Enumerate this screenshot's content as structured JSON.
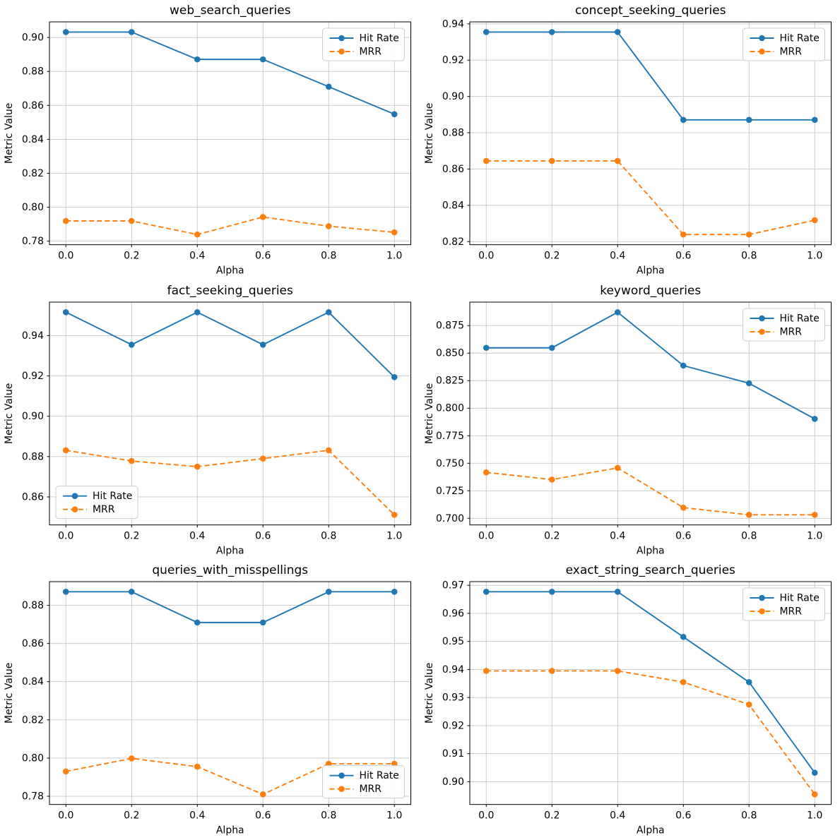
{
  "figure": {
    "ylabel": "Metric Value",
    "xlabel": "Alpha",
    "series_names": [
      "Hit Rate",
      "MRR"
    ],
    "colors": {
      "hit_rate": "#1f77b4",
      "mrr": "#ff7f0e",
      "grid": "#c6c6c6",
      "spine": "#000000",
      "text": "#000000",
      "legend_edge": "#cccccc"
    }
  },
  "chart_data": [
    {
      "type": "line",
      "title": "web_search_queries",
      "xlabel": "Alpha",
      "ylabel": "Metric Value",
      "x": [
        0.0,
        0.2,
        0.4,
        0.6,
        0.8,
        1.0
      ],
      "xlim": [
        -0.05,
        1.05
      ],
      "ylim": [
        0.7779,
        0.9092
      ],
      "xticks": [
        0.0,
        0.2,
        0.4,
        0.6,
        0.8,
        1.0
      ],
      "yticks": [
        0.78,
        0.8,
        0.82,
        0.84,
        0.86,
        0.88,
        0.9
      ],
      "ydecimals": 2,
      "grid": true,
      "legend_position": "upper-right",
      "series": [
        {
          "name": "Hit Rate",
          "color": "#1f77b4",
          "style": "solid",
          "marker": "circle",
          "values": [
            0.9032,
            0.9032,
            0.8871,
            0.8871,
            0.871,
            0.8548
          ]
        },
        {
          "name": "MRR",
          "color": "#ff7f0e",
          "style": "dashed",
          "marker": "circle",
          "values": [
            0.7919,
            0.7919,
            0.7839,
            0.7942,
            0.7888,
            0.7852
          ]
        }
      ]
    },
    {
      "type": "line",
      "title": "concept_seeking_queries",
      "xlabel": "Alpha",
      "ylabel": "Metric Value",
      "x": [
        0.0,
        0.2,
        0.4,
        0.6,
        0.8,
        1.0
      ],
      "xlim": [
        -0.05,
        1.05
      ],
      "ylim": [
        0.8183,
        0.9411
      ],
      "xticks": [
        0.0,
        0.2,
        0.4,
        0.6,
        0.8,
        1.0
      ],
      "yticks": [
        0.82,
        0.84,
        0.86,
        0.88,
        0.9,
        0.92,
        0.94
      ],
      "ydecimals": 2,
      "grid": true,
      "legend_position": "upper-right",
      "series": [
        {
          "name": "Hit Rate",
          "color": "#1f77b4",
          "style": "solid",
          "marker": "circle",
          "values": [
            0.9355,
            0.9355,
            0.9355,
            0.8871,
            0.8871,
            0.8871
          ]
        },
        {
          "name": "MRR",
          "color": "#ff7f0e",
          "style": "dashed",
          "marker": "circle",
          "values": [
            0.8645,
            0.8645,
            0.8645,
            0.8239,
            0.8239,
            0.8318
          ]
        }
      ]
    },
    {
      "type": "line",
      "title": "fact_seeking_queries",
      "xlabel": "Alpha",
      "ylabel": "Metric Value",
      "x": [
        0.0,
        0.2,
        0.4,
        0.6,
        0.8,
        1.0
      ],
      "xlim": [
        -0.05,
        1.05
      ],
      "ylim": [
        0.8461,
        0.9566
      ],
      "xticks": [
        0.0,
        0.2,
        0.4,
        0.6,
        0.8,
        1.0
      ],
      "yticks": [
        0.86,
        0.88,
        0.9,
        0.92,
        0.94
      ],
      "ydecimals": 2,
      "grid": true,
      "legend_position": "lower-left",
      "series": [
        {
          "name": "Hit Rate",
          "color": "#1f77b4",
          "style": "solid",
          "marker": "circle",
          "values": [
            0.9516,
            0.9355,
            0.9516,
            0.9355,
            0.9516,
            0.9194
          ]
        },
        {
          "name": "MRR",
          "color": "#ff7f0e",
          "style": "dashed",
          "marker": "circle",
          "values": [
            0.8831,
            0.8778,
            0.875,
            0.879,
            0.8831,
            0.8511
          ]
        }
      ]
    },
    {
      "type": "line",
      "title": "keyword_queries",
      "xlabel": "Alpha",
      "ylabel": "Metric Value",
      "x": [
        0.0,
        0.2,
        0.4,
        0.6,
        0.8,
        1.0
      ],
      "xlim": [
        -0.05,
        1.05
      ],
      "ylim": [
        0.694,
        0.8963
      ],
      "xticks": [
        0.0,
        0.2,
        0.4,
        0.6,
        0.8,
        1.0
      ],
      "yticks": [
        0.7,
        0.725,
        0.75,
        0.775,
        0.8,
        0.825,
        0.85,
        0.875
      ],
      "ydecimals": 3,
      "grid": true,
      "legend_position": "upper-right",
      "series": [
        {
          "name": "Hit Rate",
          "color": "#1f77b4",
          "style": "solid",
          "marker": "circle",
          "values": [
            0.8548,
            0.8548,
            0.8871,
            0.8387,
            0.8226,
            0.7903
          ]
        },
        {
          "name": "MRR",
          "color": "#ff7f0e",
          "style": "dashed",
          "marker": "circle",
          "values": [
            0.7417,
            0.7352,
            0.7458,
            0.7097,
            0.7032,
            0.7032
          ]
        }
      ]
    },
    {
      "type": "line",
      "title": "queries_with_misspellings",
      "xlabel": "Alpha",
      "ylabel": "Metric Value",
      "x": [
        0.0,
        0.2,
        0.4,
        0.6,
        0.8,
        1.0
      ],
      "xlim": [
        -0.05,
        1.05
      ],
      "ylim": [
        0.7757,
        0.8924
      ],
      "xticks": [
        0.0,
        0.2,
        0.4,
        0.6,
        0.8,
        1.0
      ],
      "yticks": [
        0.78,
        0.8,
        0.82,
        0.84,
        0.86,
        0.88
      ],
      "ydecimals": 2,
      "grid": true,
      "legend_position": "lower-right",
      "series": [
        {
          "name": "Hit Rate",
          "color": "#1f77b4",
          "style": "solid",
          "marker": "circle",
          "values": [
            0.8871,
            0.8871,
            0.871,
            0.871,
            0.8871,
            0.8871
          ]
        },
        {
          "name": "MRR",
          "color": "#ff7f0e",
          "style": "dashed",
          "marker": "circle",
          "values": [
            0.793,
            0.7998,
            0.7955,
            0.781,
            0.797,
            0.797
          ]
        }
      ]
    },
    {
      "type": "line",
      "title": "exact_string_search_queries",
      "xlabel": "Alpha",
      "ylabel": "Metric Value",
      "x": [
        0.0,
        0.2,
        0.4,
        0.6,
        0.8,
        1.0
      ],
      "xlim": [
        -0.05,
        1.05
      ],
      "ylim": [
        0.8919,
        0.9713
      ],
      "xticks": [
        0.0,
        0.2,
        0.4,
        0.6,
        0.8,
        1.0
      ],
      "yticks": [
        0.9,
        0.91,
        0.92,
        0.93,
        0.94,
        0.95,
        0.96,
        0.97
      ],
      "ydecimals": 2,
      "grid": true,
      "legend_position": "upper-right",
      "series": [
        {
          "name": "Hit Rate",
          "color": "#1f77b4",
          "style": "solid",
          "marker": "circle",
          "values": [
            0.9677,
            0.9677,
            0.9677,
            0.9516,
            0.9355,
            0.9032
          ]
        },
        {
          "name": "MRR",
          "color": "#ff7f0e",
          "style": "dashed",
          "marker": "circle",
          "values": [
            0.9395,
            0.9395,
            0.9395,
            0.9355,
            0.9275,
            0.8955
          ]
        }
      ]
    }
  ]
}
